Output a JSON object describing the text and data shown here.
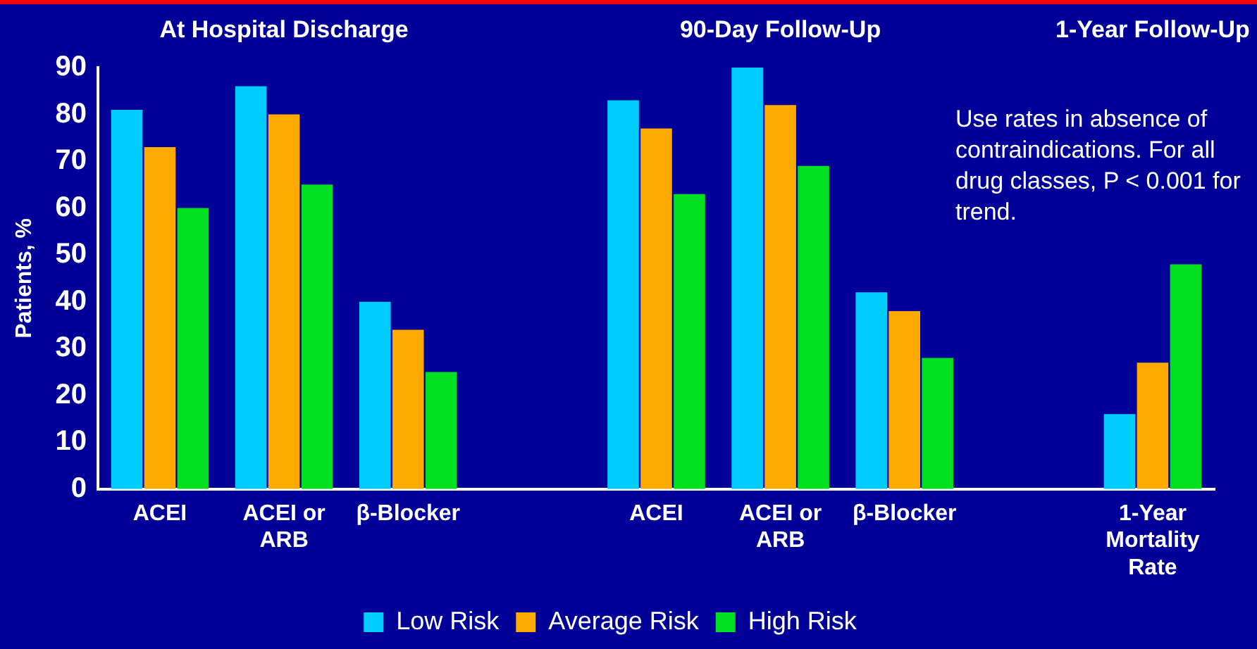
{
  "chart_data": {
    "type": "bar",
    "ylabel": "Patients, %",
    "categories": [
      "ACEI",
      "ACEI or ARB",
      "β-Blocker",
      null,
      "ACEI",
      "ACEI or ARB",
      "β-Blocker",
      null,
      "1-Year Mortality Rate"
    ],
    "series": [
      {
        "name": "Low Risk",
        "color": "#00ccff",
        "values": [
          81,
          86,
          40,
          null,
          83,
          90,
          42,
          null,
          16
        ]
      },
      {
        "name": "Average Risk",
        "color": "#ffaa00",
        "values": [
          73,
          80,
          34,
          null,
          77,
          82,
          38,
          null,
          27
        ]
      },
      {
        "name": "High Risk",
        "color": "#00e020",
        "values": [
          60,
          65,
          25,
          null,
          63,
          69,
          28,
          null,
          48
        ]
      }
    ],
    "ylim": [
      0,
      90
    ],
    "yticks": [
      0,
      10,
      20,
      30,
      40,
      50,
      60,
      70,
      80,
      90
    ],
    "grid": false,
    "legend": "bottom",
    "annotations": [
      "At Hospital Discharge",
      "90-Day Follow-Up",
      "1-Year Follow-Up",
      "Use rates in absence of contraindications. For all drug classes, P < 0.001 for trend."
    ]
  }
}
